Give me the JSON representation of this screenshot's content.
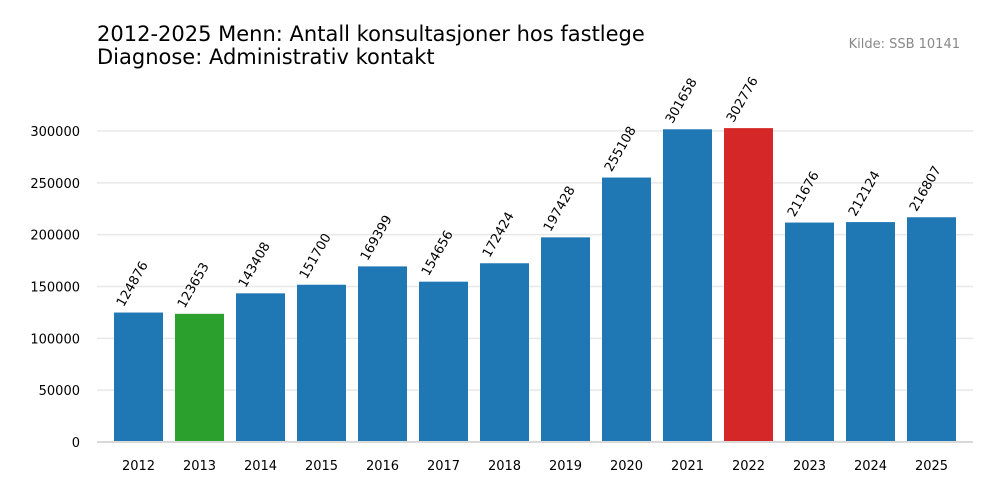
{
  "title_line1": "2012-2025 Menn: Antall konsultasjoner hos fastlege",
  "title_line2": "Diagnose: Administrativ kontakt",
  "source": "Kilde: SSB 10141",
  "chart_data": {
    "type": "bar",
    "title": "2012-2025 Menn: Antall konsultasjoner hos fastlege / Diagnose: Administrativ kontakt",
    "xlabel": "",
    "ylabel": "",
    "ylim": [
      0,
      340000
    ],
    "yticks": [
      0,
      50000,
      100000,
      150000,
      200000,
      250000,
      300000
    ],
    "grid": true,
    "categories": [
      "2012",
      "2013",
      "2014",
      "2015",
      "2016",
      "2017",
      "2018",
      "2019",
      "2020",
      "2021",
      "2022",
      "2023",
      "2024",
      "2025"
    ],
    "values": [
      124876,
      123653,
      143408,
      151700,
      169399,
      154656,
      172424,
      197428,
      255108,
      301658,
      302776,
      211676,
      212124,
      216807
    ],
    "bar_colors": [
      "#1f77b4",
      "#2ca02c",
      "#1f77b4",
      "#1f77b4",
      "#1f77b4",
      "#1f77b4",
      "#1f77b4",
      "#1f77b4",
      "#1f77b4",
      "#1f77b4",
      "#d62728",
      "#1f77b4",
      "#1f77b4",
      "#1f77b4"
    ],
    "data_labels": [
      "124876",
      "123653",
      "143408",
      "151700",
      "169399",
      "154656",
      "172424",
      "197428",
      "255108",
      "301658",
      "302776",
      "211676",
      "212124",
      "216807"
    ]
  }
}
